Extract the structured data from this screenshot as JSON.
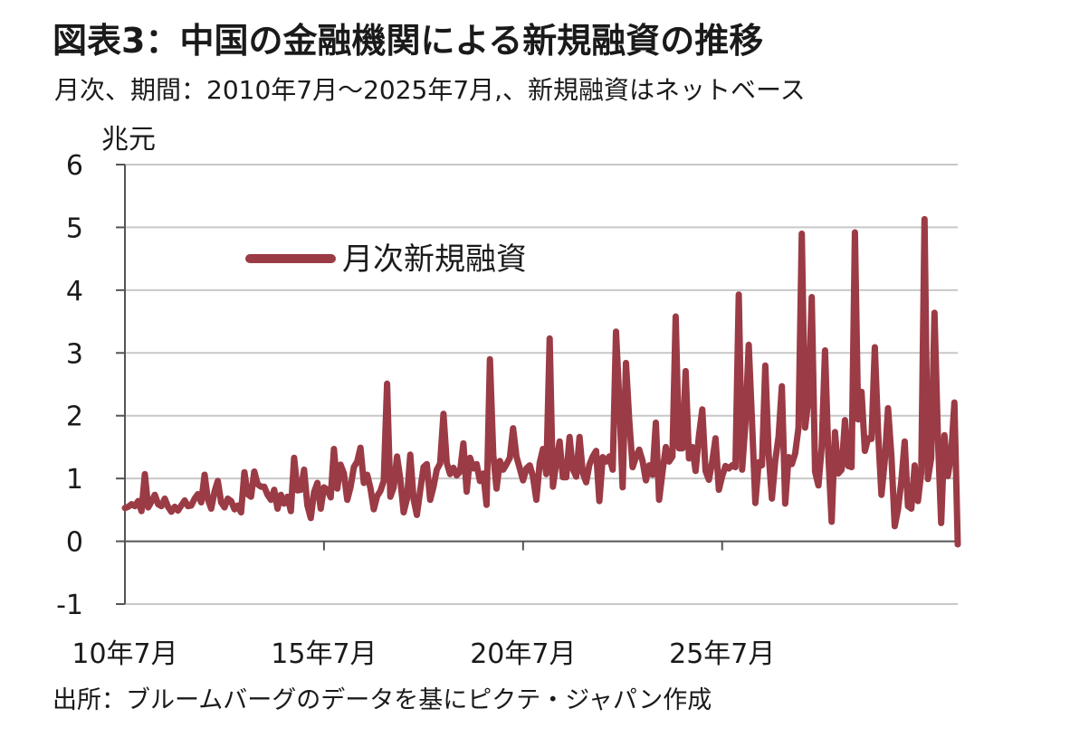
{
  "header": {
    "title": "図表3：中国の金融機関による新規融資の推移",
    "subtitle": "月次、期間：2010年7月～2025年7月,、新規融資はネットベース"
  },
  "footer": {
    "source": "出所：ブルームバーグのデータを基にピクテ・ジャパン作成"
  },
  "chart_data": {
    "type": "line",
    "unit_label": "兆元",
    "ylim": [
      -1,
      6
    ],
    "y_ticks": [
      "6",
      "5",
      "4",
      "3",
      "2",
      "1",
      "0",
      "-1"
    ],
    "x_ticks": [
      "10年7月",
      "15年7月",
      "20年7月",
      "25年7月"
    ],
    "grid": true,
    "legend_position": "top-left",
    "colors": {
      "series": "#9b3b45",
      "grid": "#c8c8c8",
      "axis": "#555555"
    },
    "series": [
      {
        "name": "月次新規融資",
        "values": [
          0.53,
          0.55,
          0.59,
          0.56,
          0.64,
          0.48,
          1.07,
          0.54,
          0.63,
          0.74,
          0.59,
          0.56,
          0.68,
          0.55,
          0.47,
          0.55,
          0.49,
          0.57,
          0.65,
          0.56,
          0.57,
          0.68,
          0.75,
          0.62,
          1.06,
          0.67,
          0.52,
          0.79,
          0.96,
          0.62,
          0.54,
          0.68,
          0.64,
          0.51,
          0.57,
          0.46,
          1.1,
          0.75,
          0.71,
          1.11,
          0.91,
          0.87,
          0.87,
          0.74,
          0.66,
          0.82,
          0.52,
          0.74,
          0.6,
          0.71,
          0.48,
          1.33,
          0.81,
          0.82,
          1.14,
          0.57,
          0.37,
          0.78,
          0.93,
          0.52,
          0.86,
          0.82,
          0.7,
          1.47,
          0.84,
          1.22,
          1.08,
          0.66,
          0.86,
          1.18,
          1.27,
          1.49,
          0.93,
          1.06,
          0.85,
          0.51,
          0.72,
          0.8,
          0.96,
          2.51,
          0.71,
          0.86,
          1.35,
          0.99,
          0.46,
          0.68,
          1.38,
          0.67,
          0.42,
          0.81,
          1.18,
          1.23,
          0.66,
          0.87,
          1.14,
          1.24,
          2.03,
          1.25,
          1.07,
          1.17,
          1.05,
          1.11,
          1.56,
          0.79,
          1.33,
          1.16,
          1.23,
          0.96,
          1.08,
          0.58,
          2.9,
          1.38,
          0.84,
          1.28,
          1.14,
          1.23,
          1.33,
          1.8,
          1.35,
          1.16,
          0.97,
          1.16,
          1.21,
          1.03,
          0.66,
          1.25,
          1.47,
          1.07,
          3.23,
          0.87,
          1.25,
          1.59,
          1.02,
          1.02,
          1.66,
          1.15,
          1.03,
          1.66,
          1.09,
          0.94,
          1.22,
          1.35,
          1.44,
          0.64,
          1.34,
          1.27,
          1.35,
          1.14,
          3.34,
          2.25,
          0.86,
          2.84,
          1.93,
          1.18,
          1.34,
          1.46,
          1.28,
          0.97,
          1.21,
          1.06,
          1.89,
          0.66,
          1.1,
          1.5,
          1.27,
          1.35,
          3.58,
          1.48,
          1.48,
          2.71,
          1.32,
          1.5,
          1.12,
          1.68,
          2.1,
          1.12,
          0.98,
          1.27,
          1.64,
          0.82,
          1.04,
          1.2,
          1.16,
          1.21,
          1.18,
          3.93,
          1.14,
          1.87,
          3.13,
          1.92,
          0.61,
          1.26,
          1.21,
          2.8,
          1.39,
          0.68,
          1.28,
          1.67,
          2.47,
          0.6,
          1.34,
          1.23,
          1.4,
          1.81,
          4.9,
          1.81,
          2.28,
          3.89,
          1.11,
          0.89,
          1.5,
          3.04,
          1.36,
          0.31,
          1.74,
          1.08,
          1.14,
          1.93,
          1.2,
          1.18,
          4.92,
          1.94,
          2.38,
          1.44,
          1.64,
          1.63,
          3.09,
          1.74,
          0.74,
          1.29,
          2.12,
          1.36,
          0.24,
          0.51,
          0.96,
          1.59,
          0.56,
          0.52,
          1.21,
          0.64,
          1.1,
          5.13,
          0.99,
          1.33,
          3.64,
          1.69,
          0.29,
          1.69,
          1.04,
          1.38,
          2.21,
          -0.05
        ]
      }
    ]
  }
}
